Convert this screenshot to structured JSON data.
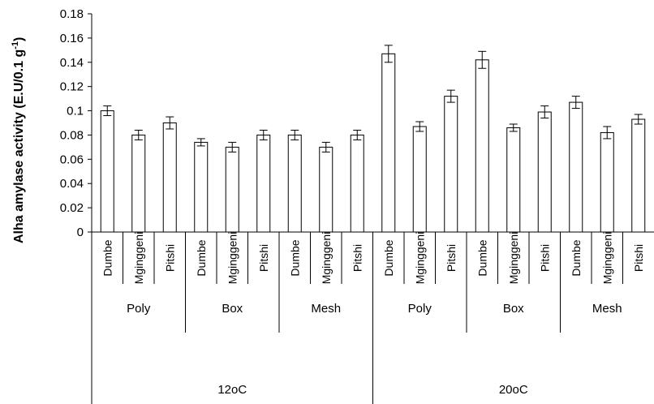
{
  "chart_data": {
    "type": "bar",
    "ylabel": "Alha amylase activity (E.U/0.1 g",
    "ylabel_sup": "-1",
    "ylabel_tail": ")",
    "ylim": [
      0,
      0.18
    ],
    "yticks": [
      "0",
      "0.02",
      "0.04",
      "0.06",
      "0.08",
      "0.1",
      "0.12",
      "0.14",
      "0.16",
      "0.18"
    ],
    "yticks_values": [
      0,
      0.02,
      0.04,
      0.06,
      0.08,
      0.1,
      0.12,
      0.14,
      0.16,
      0.18
    ],
    "grid": false,
    "bar_fill": "#ffffff",
    "bar_stroke": "#000000",
    "levels": [
      {
        "temperature": "12oC",
        "groups": [
          {
            "name": "Poly",
            "bars": [
              {
                "category": "Dumbe",
                "value": 0.1,
                "error": 0.004
              },
              {
                "category": "Mginggeni",
                "value": 0.08,
                "error": 0.004
              },
              {
                "category": "Pitshi",
                "value": 0.09,
                "error": 0.005
              }
            ]
          },
          {
            "name": "Box",
            "bars": [
              {
                "category": "Dumbe",
                "value": 0.074,
                "error": 0.003
              },
              {
                "category": "Mginggeni",
                "value": 0.07,
                "error": 0.004
              },
              {
                "category": "Pitshi",
                "value": 0.08,
                "error": 0.004
              }
            ]
          },
          {
            "name": "Mesh",
            "bars": [
              {
                "category": "Dumbe",
                "value": 0.08,
                "error": 0.004
              },
              {
                "category": "Mginggeni",
                "value": 0.07,
                "error": 0.004
              },
              {
                "category": "Pitshi",
                "value": 0.08,
                "error": 0.004
              }
            ]
          }
        ]
      },
      {
        "temperature": "20oC",
        "groups": [
          {
            "name": "Poly",
            "bars": [
              {
                "category": "Dumbe",
                "value": 0.147,
                "error": 0.007
              },
              {
                "category": "Mginggeni",
                "value": 0.087,
                "error": 0.004
              },
              {
                "category": "Pitshi",
                "value": 0.112,
                "error": 0.005
              }
            ]
          },
          {
            "name": "Box",
            "bars": [
              {
                "category": "Dumbe",
                "value": 0.142,
                "error": 0.007
              },
              {
                "category": "Mginggeni",
                "value": 0.086,
                "error": 0.003
              },
              {
                "category": "Pitshi",
                "value": 0.099,
                "error": 0.005
              }
            ]
          },
          {
            "name": "Mesh",
            "bars": [
              {
                "category": "Dumbe",
                "value": 0.107,
                "error": 0.005
              },
              {
                "category": "Mginggeni",
                "value": 0.082,
                "error": 0.005
              },
              {
                "category": "Pitshi",
                "value": 0.093,
                "error": 0.004
              }
            ]
          }
        ]
      }
    ]
  }
}
